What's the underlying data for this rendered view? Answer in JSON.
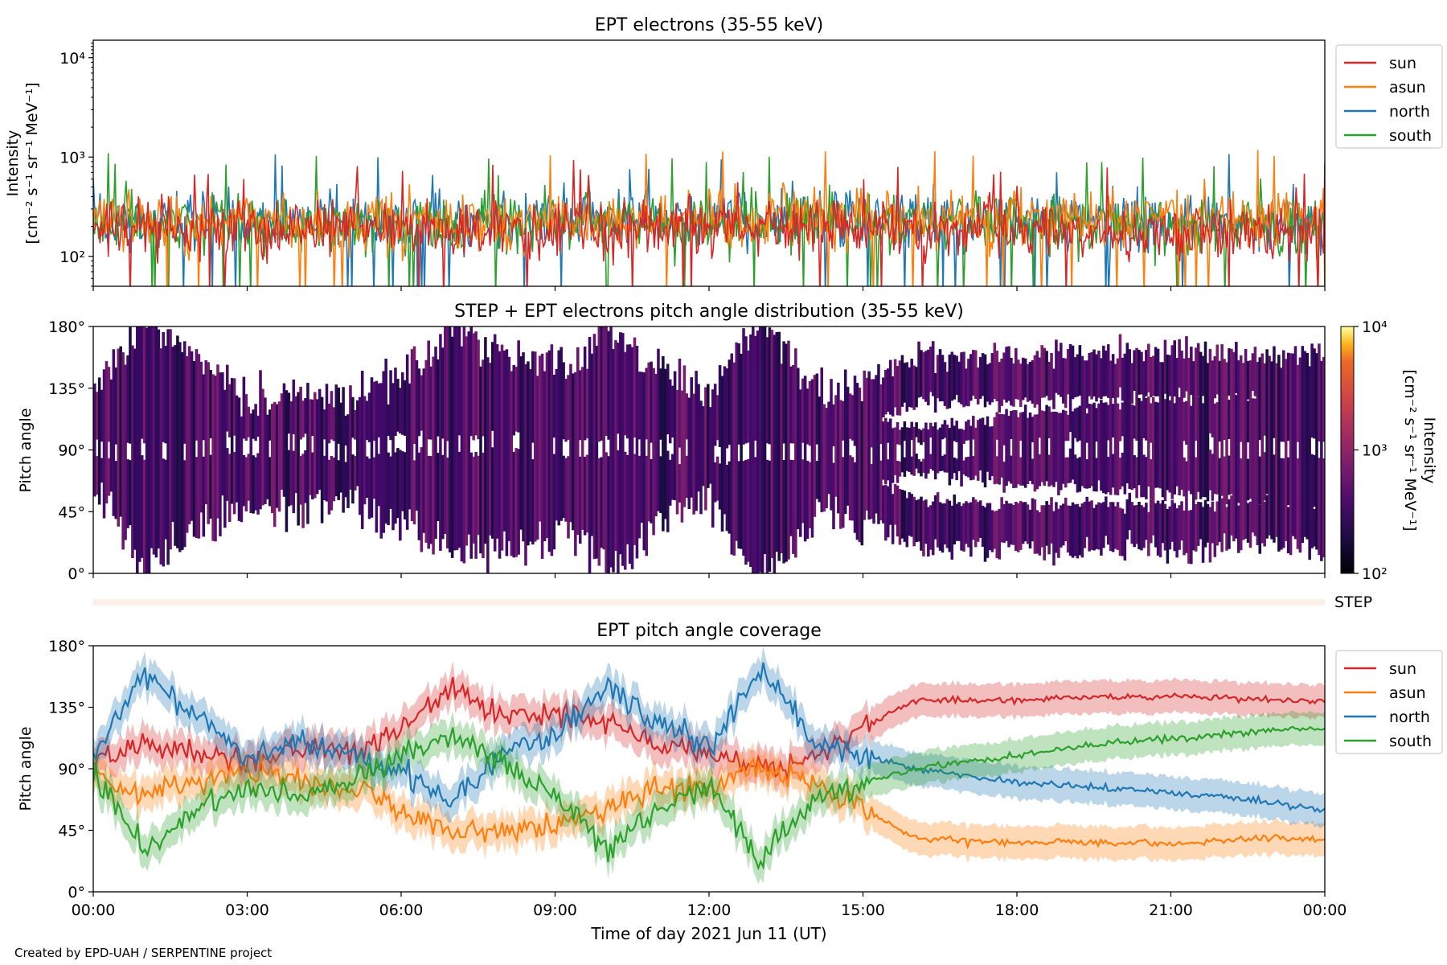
{
  "footer": "Created by EPD-UAH / SERPENTINE project",
  "xaxis": {
    "label": "Time of day 2021 Jun 11 (UT)",
    "ticks": [
      "00:00",
      "03:00",
      "06:00",
      "09:00",
      "12:00",
      "15:00",
      "18:00",
      "21:00",
      "00:00"
    ],
    "range_hours": [
      0,
      24
    ]
  },
  "colors": {
    "sun": "#d62728",
    "asun": "#ff7f0e",
    "north": "#1f77b4",
    "south": "#2ca02c"
  },
  "chart_data": [
    {
      "type": "line",
      "title": "EPT electrons (35-55 keV)",
      "ylabel": "Intensity",
      "ylabel_units": "[cm⁻² s⁻¹ sr⁻¹ MeV⁻¹]",
      "yscale": "log",
      "ylim": [
        50,
        15000
      ],
      "yticks": [
        "10²",
        "10³",
        "10⁴"
      ],
      "legend": "right",
      "x_hours": [
        0,
        2,
        4,
        6,
        8,
        10,
        12,
        13,
        14,
        16,
        18,
        20,
        22,
        24
      ],
      "series": [
        {
          "name": "sun",
          "values": [
            200,
            190,
            185,
            190,
            180,
            190,
            195,
            200,
            190,
            185,
            190,
            180,
            185,
            190
          ]
        },
        {
          "name": "asun",
          "values": [
            230,
            220,
            210,
            220,
            215,
            230,
            230,
            240,
            230,
            235,
            240,
            250,
            250,
            260
          ]
        },
        {
          "name": "north",
          "values": [
            220,
            230,
            210,
            220,
            230,
            240,
            230,
            250,
            240,
            230,
            225,
            220,
            215,
            210
          ]
        },
        {
          "name": "south",
          "values": [
            210,
            220,
            200,
            215,
            225,
            210,
            220,
            225,
            215,
            210,
            205,
            210,
            200,
            205
          ]
        }
      ]
    },
    {
      "type": "heatmap",
      "title": "STEP + EPT electrons pitch angle distribution (35-55 keV)",
      "ylabel": "Pitch angle",
      "ylim": [
        0,
        180
      ],
      "yticks": [
        "0°",
        "45°",
        "90°",
        "135°",
        "180°"
      ],
      "colorbar": {
        "label": "Intensity",
        "units": "[cm⁻² s⁻¹ sr⁻¹ MeV⁻¹]",
        "ticks": [
          "10²",
          "10³",
          "10⁴"
        ],
        "range": [
          100,
          10000
        ],
        "colormap": "inferno"
      }
    },
    {
      "type": "strip",
      "label": "STEP"
    },
    {
      "type": "line",
      "title": "EPT pitch angle coverage",
      "ylabel": "Pitch angle",
      "ylim": [
        0,
        180
      ],
      "yticks": [
        "0°",
        "45°",
        "90°",
        "135°",
        "180°"
      ],
      "legend": "right",
      "x_hours": [
        0,
        1,
        2,
        3,
        4,
        5,
        6,
        7,
        8,
        9,
        10,
        11,
        12,
        13,
        14,
        15,
        16,
        17,
        18,
        19,
        20,
        21,
        22,
        23,
        24
      ],
      "series": [
        {
          "name": "sun",
          "values": [
            95,
            110,
            100,
            95,
            105,
            100,
            120,
            150,
            130,
            130,
            125,
            110,
            100,
            90,
            95,
            120,
            140,
            140,
            140,
            142,
            143,
            143,
            142,
            140,
            140
          ]
        },
        {
          "name": "asun",
          "values": [
            85,
            70,
            80,
            90,
            85,
            75,
            60,
            45,
            45,
            50,
            60,
            75,
            75,
            90,
            80,
            60,
            40,
            37,
            36,
            36,
            36,
            35,
            37,
            40,
            38
          ]
        },
        {
          "name": "north",
          "values": [
            100,
            160,
            130,
            100,
            110,
            100,
            90,
            65,
            100,
            115,
            150,
            125,
            105,
            165,
            110,
            100,
            90,
            85,
            80,
            78,
            75,
            72,
            70,
            65,
            60
          ]
        },
        {
          "name": "south",
          "values": [
            90,
            30,
            60,
            75,
            70,
            80,
            100,
            115,
            95,
            70,
            30,
            60,
            80,
            20,
            65,
            80,
            90,
            95,
            100,
            105,
            110,
            112,
            115,
            118,
            120
          ]
        }
      ],
      "band_halfwidth_deg": 12
    }
  ]
}
